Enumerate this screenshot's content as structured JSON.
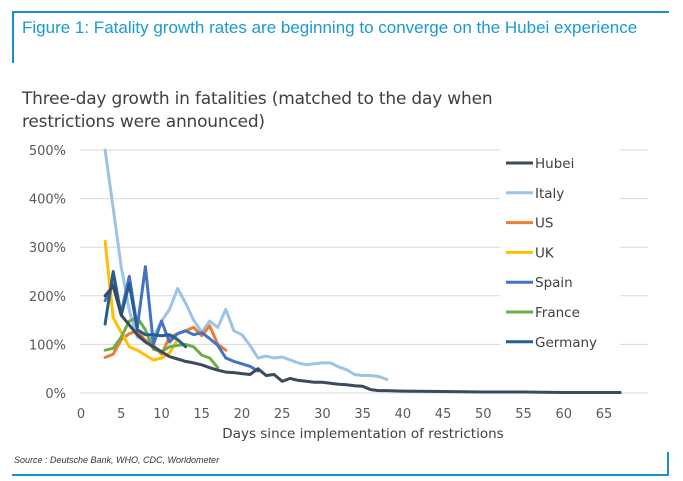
{
  "figure": {
    "title": "Figure 1: Fatality growth rates are beginning to converge on the Hubei experience",
    "source": "Source : Deutsche Bank, WHO, CDC, Worldometer",
    "accent_color": "#1a8fc9"
  },
  "chart_data": {
    "type": "line",
    "title": "Three-day growth in fatalities (matched to the day when restrictions were announced)",
    "xlabel": "Days since implementation of restrictions",
    "ylabel": "",
    "xlim": [
      0,
      67
    ],
    "ylim": [
      0,
      500
    ],
    "x_ticks": [
      0,
      5,
      10,
      15,
      20,
      25,
      30,
      35,
      40,
      45,
      50,
      55,
      60,
      65
    ],
    "y_ticks": [
      0,
      100,
      200,
      300,
      400,
      500
    ],
    "y_tick_labels": [
      "0%",
      "100%",
      "200%",
      "300%",
      "400%",
      "500%"
    ],
    "grid": true,
    "legend_position": "right",
    "series": [
      {
        "name": "Hubei",
        "color": "#3c4a5c",
        "x": [
          3,
          4,
          5,
          6,
          7,
          8,
          9,
          10,
          11,
          12,
          13,
          14,
          15,
          16,
          17,
          18,
          19,
          20,
          21,
          22,
          23,
          24,
          25,
          26,
          27,
          28,
          29,
          30,
          31,
          32,
          33,
          34,
          35,
          36,
          37,
          38,
          40,
          45,
          50,
          55,
          60,
          65,
          67
        ],
        "values": [
          200,
          220,
          160,
          140,
          120,
          105,
          95,
          85,
          75,
          70,
          65,
          62,
          58,
          52,
          47,
          43,
          42,
          40,
          38,
          50,
          36,
          38,
          24,
          30,
          26,
          24,
          22,
          22,
          20,
          18,
          17,
          15,
          14,
          7,
          5,
          5,
          4,
          3,
          2,
          2,
          1,
          1,
          1
        ]
      },
      {
        "name": "Italy",
        "color": "#9dc3e6",
        "x": [
          3,
          4,
          5,
          6,
          7,
          8,
          9,
          10,
          11,
          12,
          13,
          14,
          15,
          16,
          17,
          18,
          19,
          20,
          21,
          22,
          23,
          24,
          25,
          26,
          27,
          28,
          29,
          30,
          31,
          32,
          33,
          34,
          35,
          36,
          37,
          38
        ],
        "values": [
          500,
          380,
          260,
          170,
          115,
          108,
          115,
          148,
          172,
          215,
          185,
          150,
          125,
          148,
          135,
          172,
          128,
          120,
          98,
          72,
          76,
          72,
          74,
          68,
          62,
          58,
          60,
          62,
          62,
          54,
          48,
          38,
          36,
          36,
          34,
          28
        ]
      },
      {
        "name": "US",
        "color": "#ed7d31",
        "x": [
          3,
          4,
          5,
          6,
          7,
          8,
          9,
          10,
          11,
          12,
          13,
          14,
          15,
          16,
          17,
          18
        ],
        "values": [
          73,
          80,
          110,
          122,
          128,
          108,
          98,
          80,
          115,
          122,
          128,
          135,
          118,
          138,
          100,
          88
        ]
      },
      {
        "name": "UK",
        "color": "#ffc000",
        "x": [
          3,
          4,
          5,
          6,
          7,
          8,
          9,
          10,
          11,
          12
        ],
        "values": [
          312,
          155,
          125,
          95,
          88,
          78,
          68,
          72,
          82,
          110
        ]
      },
      {
        "name": "Spain",
        "color": "#4472c4",
        "x": [
          3,
          4,
          5,
          6,
          7,
          8,
          9,
          10,
          11,
          12,
          13,
          14,
          15,
          16,
          17,
          18,
          19,
          20,
          21,
          22
        ],
        "values": [
          190,
          225,
          165,
          240,
          135,
          260,
          100,
          148,
          105,
          122,
          128,
          120,
          124,
          112,
          98,
          72,
          65,
          60,
          55,
          45
        ]
      },
      {
        "name": "France",
        "color": "#70ad47",
        "x": [
          3,
          4,
          5,
          6,
          7,
          8,
          9,
          10,
          11,
          12,
          13,
          14,
          15,
          16,
          17
        ],
        "values": [
          88,
          92,
          115,
          148,
          155,
          130,
          90,
          85,
          95,
          98,
          100,
          95,
          78,
          72,
          52
        ]
      },
      {
        "name": "Germany",
        "color": "#255e91",
        "x": [
          3,
          4,
          5,
          6,
          7,
          8,
          9,
          10,
          11,
          12,
          13
        ],
        "values": [
          142,
          250,
          160,
          225,
          130,
          120,
          120,
          118,
          120,
          110,
          95
        ]
      }
    ]
  }
}
